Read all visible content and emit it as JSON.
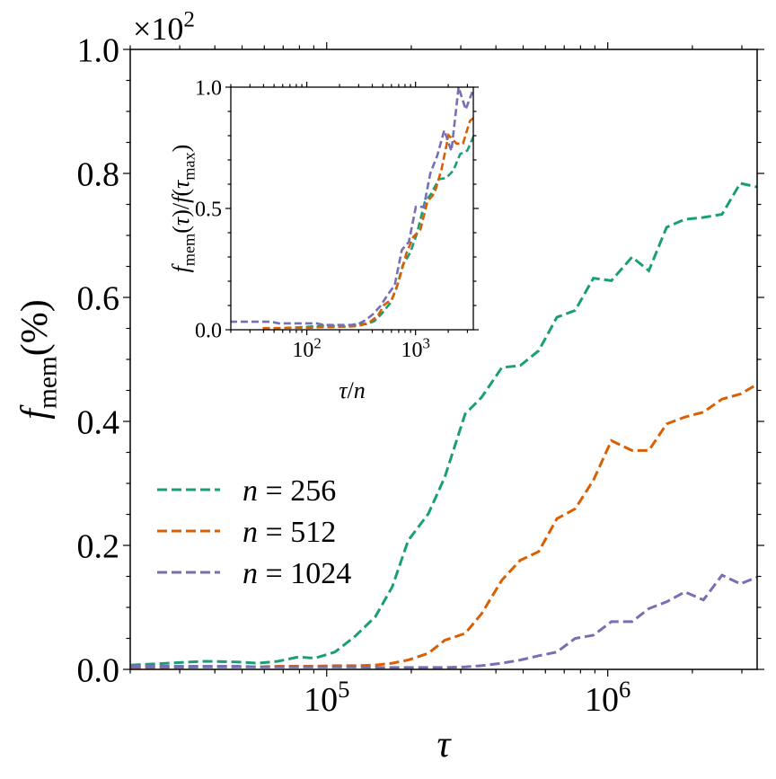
{
  "chart_data": {
    "type": "line",
    "x_scale": "log",
    "xlabel": "τ",
    "ylabel": "f_{mem}(%)",
    "y_offset_text": "×10^{2}",
    "xlim": [
      20000,
      3400000
    ],
    "ylim": [
      0,
      1.0
    ],
    "yticks": [
      "0.0",
      "0.2",
      "0.4",
      "0.6",
      "0.8",
      "1.0"
    ],
    "xticks": [
      "10^{5}",
      "10^{6}"
    ],
    "grid": false,
    "legend_placement": "center-left",
    "x": [
      20100,
      27200,
      36700,
      47900,
      56800,
      67000,
      79300,
      90600,
      107000,
      126000,
      149000,
      171000,
      195000,
      230000,
      263000,
      311000,
      356000,
      420000,
      488000,
      568000,
      659000,
      766000,
      889000,
      1030000,
      1220000,
      1400000,
      1620000,
      1880000,
      2190000,
      2550000,
      2960000,
      3410000
    ],
    "series": [
      {
        "name": "n = 256",
        "n": 256,
        "color": "#1b9e77",
        "values": [
          0.007,
          0.01,
          0.013,
          0.012,
          0.01,
          0.013,
          0.02,
          0.018,
          0.028,
          0.053,
          0.085,
          0.133,
          0.208,
          0.251,
          0.31,
          0.412,
          0.439,
          0.487,
          0.49,
          0.514,
          0.568,
          0.579,
          0.631,
          0.627,
          0.665,
          0.643,
          0.713,
          0.726,
          0.729,
          0.734,
          0.784,
          0.778
        ]
      },
      {
        "name": "n = 512",
        "n": 512,
        "color": "#d95f02",
        "values": [
          0.003,
          0.003,
          0.004,
          0.004,
          0.004,
          0.005,
          0.005,
          0.005,
          0.006,
          0.006,
          0.007,
          0.01,
          0.015,
          0.026,
          0.047,
          0.058,
          0.09,
          0.144,
          0.176,
          0.19,
          0.243,
          0.259,
          0.305,
          0.369,
          0.353,
          0.353,
          0.396,
          0.407,
          0.415,
          0.436,
          0.444,
          0.46
        ]
      },
      {
        "name": "n = 1024",
        "n": 1024,
        "color": "#7570b3",
        "values": [
          0.005,
          0.005,
          0.005,
          0.005,
          0.004,
          0.004,
          0.004,
          0.004,
          0.004,
          0.004,
          0.003,
          0.003,
          0.003,
          0.003,
          0.003,
          0.004,
          0.006,
          0.01,
          0.015,
          0.022,
          0.028,
          0.05,
          0.055,
          0.077,
          0.077,
          0.098,
          0.109,
          0.125,
          0.112,
          0.152,
          0.138,
          0.149
        ]
      }
    ],
    "inset": {
      "type": "line",
      "x_scale": "log",
      "xlabel": "τ/n",
      "ylabel": "f_{mem}(τ)/f(τ_{max})",
      "xlim": [
        20,
        3400
      ],
      "ylim": [
        0,
        1.0
      ],
      "yticks": [
        "0.0",
        "0.5",
        "1.0"
      ],
      "xticks": [
        "10^{2}",
        "10^{3}"
      ],
      "x_transform": "τ/n",
      "y_transform": "f/f(τ_max)"
    }
  }
}
